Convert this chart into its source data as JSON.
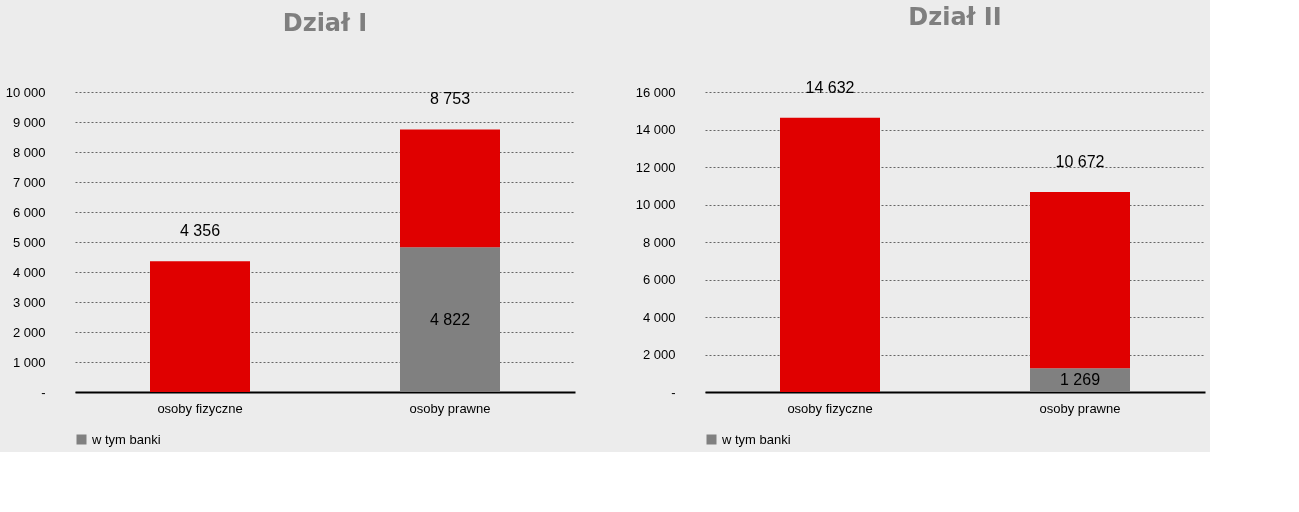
{
  "chart_data": [
    {
      "type": "bar",
      "title": "Dział I",
      "categories": [
        "osoby fizyczne",
        "osoby prawne"
      ],
      "stacked": true,
      "series": [
        {
          "name": "w tym banki",
          "color": "#808080",
          "values": [
            null,
            4822
          ],
          "value_labels": [
            null,
            "4 822"
          ]
        },
        {
          "color": "#e00000",
          "values": [
            4356,
            3931
          ]
        }
      ],
      "totals": [
        "4 356",
        "8 753"
      ],
      "ylim": [
        0,
        10000
      ],
      "yticks": [
        {
          "value": 0,
          "label": "-"
        },
        {
          "value": 1000,
          "label": "1 000"
        },
        {
          "value": 2000,
          "label": "2 000"
        },
        {
          "value": 3000,
          "label": "3 000"
        },
        {
          "value": 4000,
          "label": "4 000"
        },
        {
          "value": 5000,
          "label": "5 000"
        },
        {
          "value": 6000,
          "label": "6 000"
        },
        {
          "value": 7000,
          "label": "7 000"
        },
        {
          "value": 8000,
          "label": "8 000"
        },
        {
          "value": 9000,
          "label": "9 000"
        },
        {
          "value": 10000,
          "label": "10 000"
        }
      ],
      "grid": "y",
      "legend": "bottom"
    },
    {
      "type": "bar",
      "title": "Dział II",
      "categories": [
        "osoby fizyczne",
        "osoby prawne"
      ],
      "stacked": true,
      "series": [
        {
          "name": "w tym banki",
          "color": "#808080",
          "values": [
            null,
            1269
          ],
          "value_labels": [
            null,
            "1 269"
          ]
        },
        {
          "color": "#e00000",
          "values": [
            14632,
            9403
          ]
        }
      ],
      "totals": [
        "14 632",
        "10 672"
      ],
      "ylim": [
        0,
        16000
      ],
      "yticks": [
        {
          "value": 0,
          "label": "-"
        },
        {
          "value": 2000,
          "label": "2 000"
        },
        {
          "value": 4000,
          "label": "4 000"
        },
        {
          "value": 6000,
          "label": "6 000"
        },
        {
          "value": 8000,
          "label": "8 000"
        },
        {
          "value": 10000,
          "label": "10 000"
        },
        {
          "value": 12000,
          "label": "12 000"
        },
        {
          "value": 14000,
          "label": "14 000"
        },
        {
          "value": 16000,
          "label": "16 000"
        }
      ],
      "grid": "y",
      "legend": "bottom"
    }
  ]
}
